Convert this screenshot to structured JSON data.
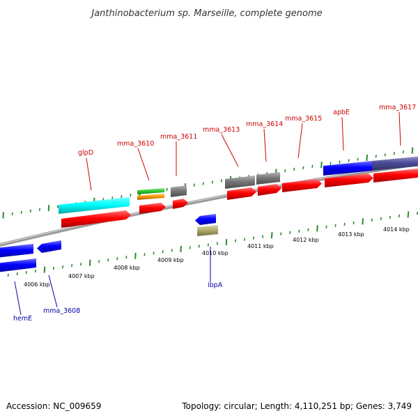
{
  "title": "Janthinobacterium sp. Marseille, complete genome",
  "accession": "Accession: NC_009659",
  "summary": "Topology: circular; Length: 4,110,251 bp; Genes: 3,749",
  "colors": {
    "backbone": "#888888",
    "tick": "#2a8a2a",
    "label_forward": "#cc0000",
    "label_reverse": "#0000aa",
    "leader_forward": "#cc0000",
    "leader_reverse": "#0000aa"
  },
  "scale_labels": [
    "4006 kbp",
    "4007 kbp",
    "4008 kbp",
    "4009 kbp",
    "4010 kbp",
    "4011 kbp",
    "4012 kbp",
    "4013 kbp",
    "4014 kbp"
  ],
  "gene_labels": [
    {
      "text": "glpD",
      "strand": "forward"
    },
    {
      "text": "mma_3610",
      "strand": "forward"
    },
    {
      "text": "mma_3611",
      "strand": "forward"
    },
    {
      "text": "mma_3613",
      "strand": "forward"
    },
    {
      "text": "mma_3614",
      "strand": "forward"
    },
    {
      "text": "mma_3615",
      "strand": "forward"
    },
    {
      "text": "apbE",
      "strand": "forward"
    },
    {
      "text": "mma_3617",
      "strand": "forward"
    },
    {
      "text": "ibpA",
      "strand": "reverse"
    },
    {
      "text": "hemE",
      "strand": "reverse"
    },
    {
      "text": "mma_3608",
      "strand": "reverse"
    }
  ],
  "features": [
    {
      "name": "glpD-cds",
      "color": "#ff0000"
    },
    {
      "name": "glpD-gene",
      "color": "#00ffff"
    },
    {
      "name": "mma_3610-cds",
      "color": "#ff0000"
    },
    {
      "name": "mma_3610-orange",
      "color": "#ff9900"
    },
    {
      "name": "mma_3610-green",
      "color": "#33cc33"
    },
    {
      "name": "mma_3611-cds",
      "color": "#ff0000"
    },
    {
      "name": "mma_3611-gray",
      "color": "#777777"
    },
    {
      "name": "mma_3613-cds",
      "color": "#ff0000"
    },
    {
      "name": "mma_3613-gray",
      "color": "#777777"
    },
    {
      "name": "mma_3614-cds",
      "color": "#ff0000"
    },
    {
      "name": "mma_3614-gray",
      "color": "#777777"
    },
    {
      "name": "mma_3615-cds",
      "color": "#ff0000"
    },
    {
      "name": "apbE-cds",
      "color": "#ff0000"
    },
    {
      "name": "apbE-gene",
      "color": "#0000ff"
    },
    {
      "name": "mma_3617-cds",
      "color": "#ff0000"
    },
    {
      "name": "mma_3617-gene",
      "color": "#4b4b99"
    },
    {
      "name": "ibpA-cds",
      "color": "#0000ff"
    },
    {
      "name": "ibpA-misc",
      "color": "#b3ad6e"
    },
    {
      "name": "hemE-cds",
      "color": "#0000ff"
    },
    {
      "name": "hemE-gene",
      "color": "#0000ff"
    },
    {
      "name": "mma_3608-cds",
      "color": "#0000ff"
    }
  ]
}
